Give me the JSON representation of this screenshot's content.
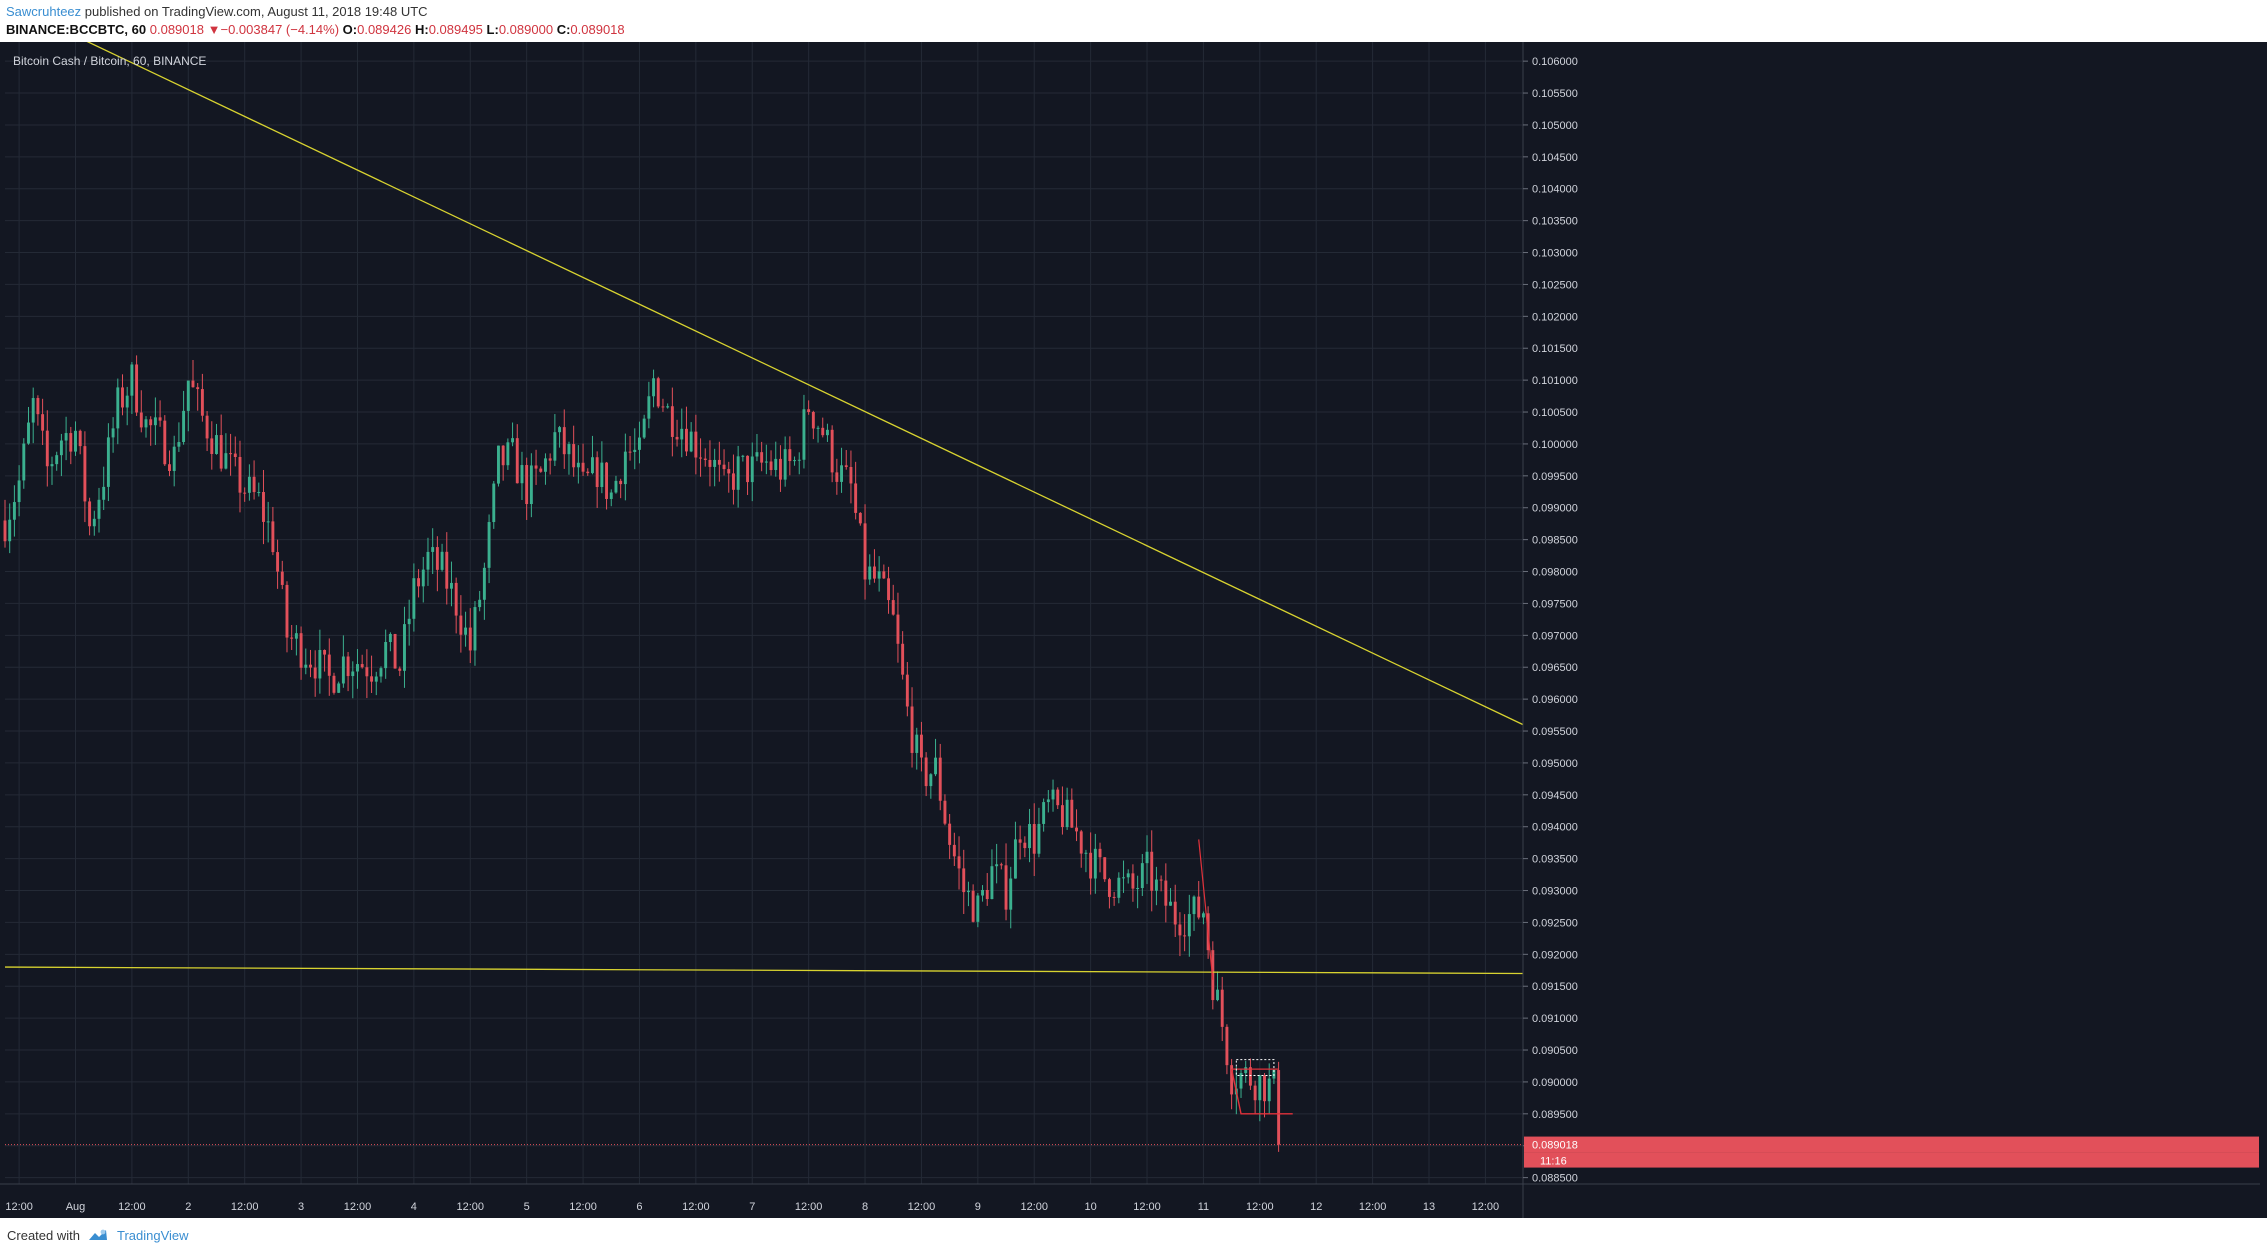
{
  "header": {
    "author": "Sawcruhteez",
    "published_text": " published on TradingView.com, August 11, 2018 19:48 UTC",
    "symbol_interval": "BINANCE:BCCBTC, 60",
    "last": "0.089018",
    "arrow": "▼",
    "change": "−0.003847 (−4.14%)",
    "o_label": "O:",
    "o_value": "0.089426",
    "h_label": "H:",
    "h_value": "0.089495",
    "l_label": "L:",
    "l_value": "0.089000",
    "c_label": "C:",
    "c_value": "0.089018"
  },
  "footer": {
    "created_with": "Created with",
    "brand": "TradingView"
  },
  "colors": {
    "background": "#131722",
    "grid": "#242a36",
    "up": "#3bb08f",
    "down": "#e2505a",
    "trendline": "#d8d330",
    "drawing": "#e2323b",
    "axis_text": "#d1d4dc"
  },
  "chart_data": {
    "type": "candlestick",
    "title": "Bitcoin Cash / Bitcoin, 60, BINANCE",
    "x_range": [
      "2018-07-31T09:00",
      "2018-08-13T20:00"
    ],
    "y_range": [
      0.0884,
      0.1063
    ],
    "y_ticks": [
      "0.088500",
      "0.089000",
      "0.089500",
      "0.090000",
      "0.090500",
      "0.091000",
      "0.091500",
      "0.092000",
      "0.092500",
      "0.093000",
      "0.093500",
      "0.094000",
      "0.094500",
      "0.095000",
      "0.095500",
      "0.096000",
      "0.096500",
      "0.097000",
      "0.097500",
      "0.098000",
      "0.098500",
      "0.099000",
      "0.099500",
      "0.100000",
      "0.100500",
      "0.101000",
      "0.101500",
      "0.102000",
      "0.102500",
      "0.103000",
      "0.103500",
      "0.104000",
      "0.104500",
      "0.105000",
      "0.105500",
      "0.106000"
    ],
    "x_ticks": [
      {
        "t": "2018-07-31T12:00",
        "label": "12:00"
      },
      {
        "t": "2018-08-01T00:00",
        "label": "Aug"
      },
      {
        "t": "2018-08-01T12:00",
        "label": "12:00"
      },
      {
        "t": "2018-08-02T00:00",
        "label": "2"
      },
      {
        "t": "2018-08-02T12:00",
        "label": "12:00"
      },
      {
        "t": "2018-08-03T00:00",
        "label": "3"
      },
      {
        "t": "2018-08-03T12:00",
        "label": "12:00"
      },
      {
        "t": "2018-08-04T00:00",
        "label": "4"
      },
      {
        "t": "2018-08-04T12:00",
        "label": "12:00"
      },
      {
        "t": "2018-08-05T00:00",
        "label": "5"
      },
      {
        "t": "2018-08-05T12:00",
        "label": "12:00"
      },
      {
        "t": "2018-08-06T00:00",
        "label": "6"
      },
      {
        "t": "2018-08-06T12:00",
        "label": "12:00"
      },
      {
        "t": "2018-08-07T00:00",
        "label": "7"
      },
      {
        "t": "2018-08-07T12:00",
        "label": "12:00"
      },
      {
        "t": "2018-08-08T00:00",
        "label": "8"
      },
      {
        "t": "2018-08-08T12:00",
        "label": "12:00"
      },
      {
        "t": "2018-08-09T00:00",
        "label": "9"
      },
      {
        "t": "2018-08-09T12:00",
        "label": "12:00"
      },
      {
        "t": "2018-08-10T00:00",
        "label": "10"
      },
      {
        "t": "2018-08-10T12:00",
        "label": "12:00"
      },
      {
        "t": "2018-08-11T00:00",
        "label": "11"
      },
      {
        "t": "2018-08-11T12:00",
        "label": "12:00"
      },
      {
        "t": "2018-08-12T00:00",
        "label": "12"
      },
      {
        "t": "2018-08-12T12:00",
        "label": "12:00"
      },
      {
        "t": "2018-08-13T00:00",
        "label": "13"
      },
      {
        "t": "2018-08-13T12:00",
        "label": "12:00"
      }
    ],
    "last_price_label": "0.089018",
    "countdown_label": "11:16",
    "last_price": 0.089018,
    "price_path": [
      [
        "2018-07-31T09:00",
        0.0988
      ],
      [
        "2018-07-31T12:00",
        0.0994
      ],
      [
        "2018-07-31T15:00",
        0.1006
      ],
      [
        "2018-07-31T18:00",
        0.0996
      ],
      [
        "2018-07-31T21:00",
        0.1001
      ],
      [
        "2018-08-01T00:00",
        0.1002
      ],
      [
        "2018-08-01T03:00",
        0.0987
      ],
      [
        "2018-08-01T06:00",
        0.0995
      ],
      [
        "2018-08-01T09:00",
        0.1006
      ],
      [
        "2018-08-01T12:00",
        0.101
      ],
      [
        "2018-08-01T15:00",
        0.1003
      ],
      [
        "2018-08-01T18:00",
        0.1001
      ],
      [
        "2018-08-01T21:00",
        0.0998
      ],
      [
        "2018-08-02T00:00",
        0.101
      ],
      [
        "2018-08-02T03:00",
        0.1004
      ],
      [
        "2018-08-02T06:00",
        0.1
      ],
      [
        "2018-08-02T09:00",
        0.0996
      ],
      [
        "2018-08-02T12:00",
        0.0993
      ],
      [
        "2018-08-02T15:00",
        0.0991
      ],
      [
        "2018-08-02T18:00",
        0.0985
      ],
      [
        "2018-08-02T21:00",
        0.097
      ],
      [
        "2018-08-03T00:00",
        0.0968
      ],
      [
        "2018-08-03T03:00",
        0.0966
      ],
      [
        "2018-08-03T06:00",
        0.0963
      ],
      [
        "2018-08-03T09:00",
        0.0966
      ],
      [
        "2018-08-03T12:00",
        0.0966
      ],
      [
        "2018-08-03T15:00",
        0.0965
      ],
      [
        "2018-08-03T18:00",
        0.0968
      ],
      [
        "2018-08-03T21:00",
        0.0965
      ],
      [
        "2018-08-04T00:00",
        0.0977
      ],
      [
        "2018-08-04T03:00",
        0.0982
      ],
      [
        "2018-08-04T06:00",
        0.098
      ],
      [
        "2018-08-04T09:00",
        0.0975
      ],
      [
        "2018-08-04T12:00",
        0.0968
      ],
      [
        "2018-08-04T15:00",
        0.098
      ],
      [
        "2018-08-04T18:00",
        0.0997
      ],
      [
        "2018-08-04T21:00",
        0.0998
      ],
      [
        "2018-08-05T00:00",
        0.0993
      ],
      [
        "2018-08-05T03:00",
        0.0995
      ],
      [
        "2018-08-05T06:00",
        0.1001
      ],
      [
        "2018-08-05T09:00",
        0.0998
      ],
      [
        "2018-08-05T12:00",
        0.0993
      ],
      [
        "2018-08-05T15:00",
        0.0996
      ],
      [
        "2018-08-05T18:00",
        0.0992
      ],
      [
        "2018-08-05T21:00",
        0.0999
      ],
      [
        "2018-08-06T00:00",
        0.0998
      ],
      [
        "2018-08-06T03:00",
        0.101
      ],
      [
        "2018-08-06T06:00",
        0.1005
      ],
      [
        "2018-08-06T09:00",
        0.1003
      ],
      [
        "2018-08-06T12:00",
        0.1
      ],
      [
        "2018-08-06T15:00",
        0.0998
      ],
      [
        "2018-08-06T18:00",
        0.0993
      ],
      [
        "2018-08-06T21:00",
        0.0996
      ],
      [
        "2018-08-07T00:00",
        0.0996
      ],
      [
        "2018-08-07T03:00",
        0.0997
      ],
      [
        "2018-08-07T06:00",
        0.0996
      ],
      [
        "2018-08-07T09:00",
        0.0997
      ],
      [
        "2018-08-07T12:00",
        0.1006
      ],
      [
        "2018-08-07T15:00",
        0.1002
      ],
      [
        "2018-08-07T18:00",
        0.0996
      ],
      [
        "2018-08-07T21:00",
        0.0993
      ],
      [
        "2018-08-08T00:00",
        0.098
      ],
      [
        "2018-08-08T03:00",
        0.0978
      ],
      [
        "2018-08-08T06:00",
        0.0972
      ],
      [
        "2018-08-08T09:00",
        0.0958
      ],
      [
        "2018-08-08T12:00",
        0.0948
      ],
      [
        "2018-08-08T15:00",
        0.0949
      ],
      [
        "2018-08-08T18:00",
        0.0938
      ],
      [
        "2018-08-08T21:00",
        0.093
      ],
      [
        "2018-08-09T00:00",
        0.0927
      ],
      [
        "2018-08-09T03:00",
        0.0933
      ],
      [
        "2018-08-09T06:00",
        0.093
      ],
      [
        "2018-08-09T09:00",
        0.094
      ],
      [
        "2018-08-09T12:00",
        0.0938
      ],
      [
        "2018-08-09T15:00",
        0.0943
      ],
      [
        "2018-08-09T18:00",
        0.0942
      ],
      [
        "2018-08-09T21:00",
        0.0939
      ],
      [
        "2018-08-10T00:00",
        0.0935
      ],
      [
        "2018-08-10T03:00",
        0.0932
      ],
      [
        "2018-08-10T06:00",
        0.0931
      ],
      [
        "2018-08-10T09:00",
        0.093
      ],
      [
        "2018-08-10T12:00",
        0.0933
      ],
      [
        "2018-08-10T15:00",
        0.0929
      ],
      [
        "2018-08-10T18:00",
        0.0926
      ],
      [
        "2018-08-10T21:00",
        0.0926
      ],
      [
        "2018-08-11T00:00",
        0.0927
      ],
      [
        "2018-08-11T02:00",
        0.0916
      ],
      [
        "2018-08-11T04:00",
        0.0909
      ],
      [
        "2018-08-11T06:00",
        0.0901
      ],
      [
        "2018-08-11T09:00",
        0.0901
      ],
      [
        "2018-08-11T12:00",
        0.09
      ],
      [
        "2018-08-11T15:00",
        0.0899
      ],
      [
        "2018-08-11T16:00",
        0.089
      ]
    ],
    "candle_count": 296,
    "trendlines": [
      {
        "from": [
          "2018-07-31T21:00",
          0.1065
        ],
        "to": [
          "2018-08-13T20:00",
          0.0956
        ]
      },
      {
        "from": [
          "2018-07-31T09:00",
          0.0918
        ],
        "to": [
          "2018-08-13T20:00",
          0.0917
        ]
      }
    ]
  }
}
